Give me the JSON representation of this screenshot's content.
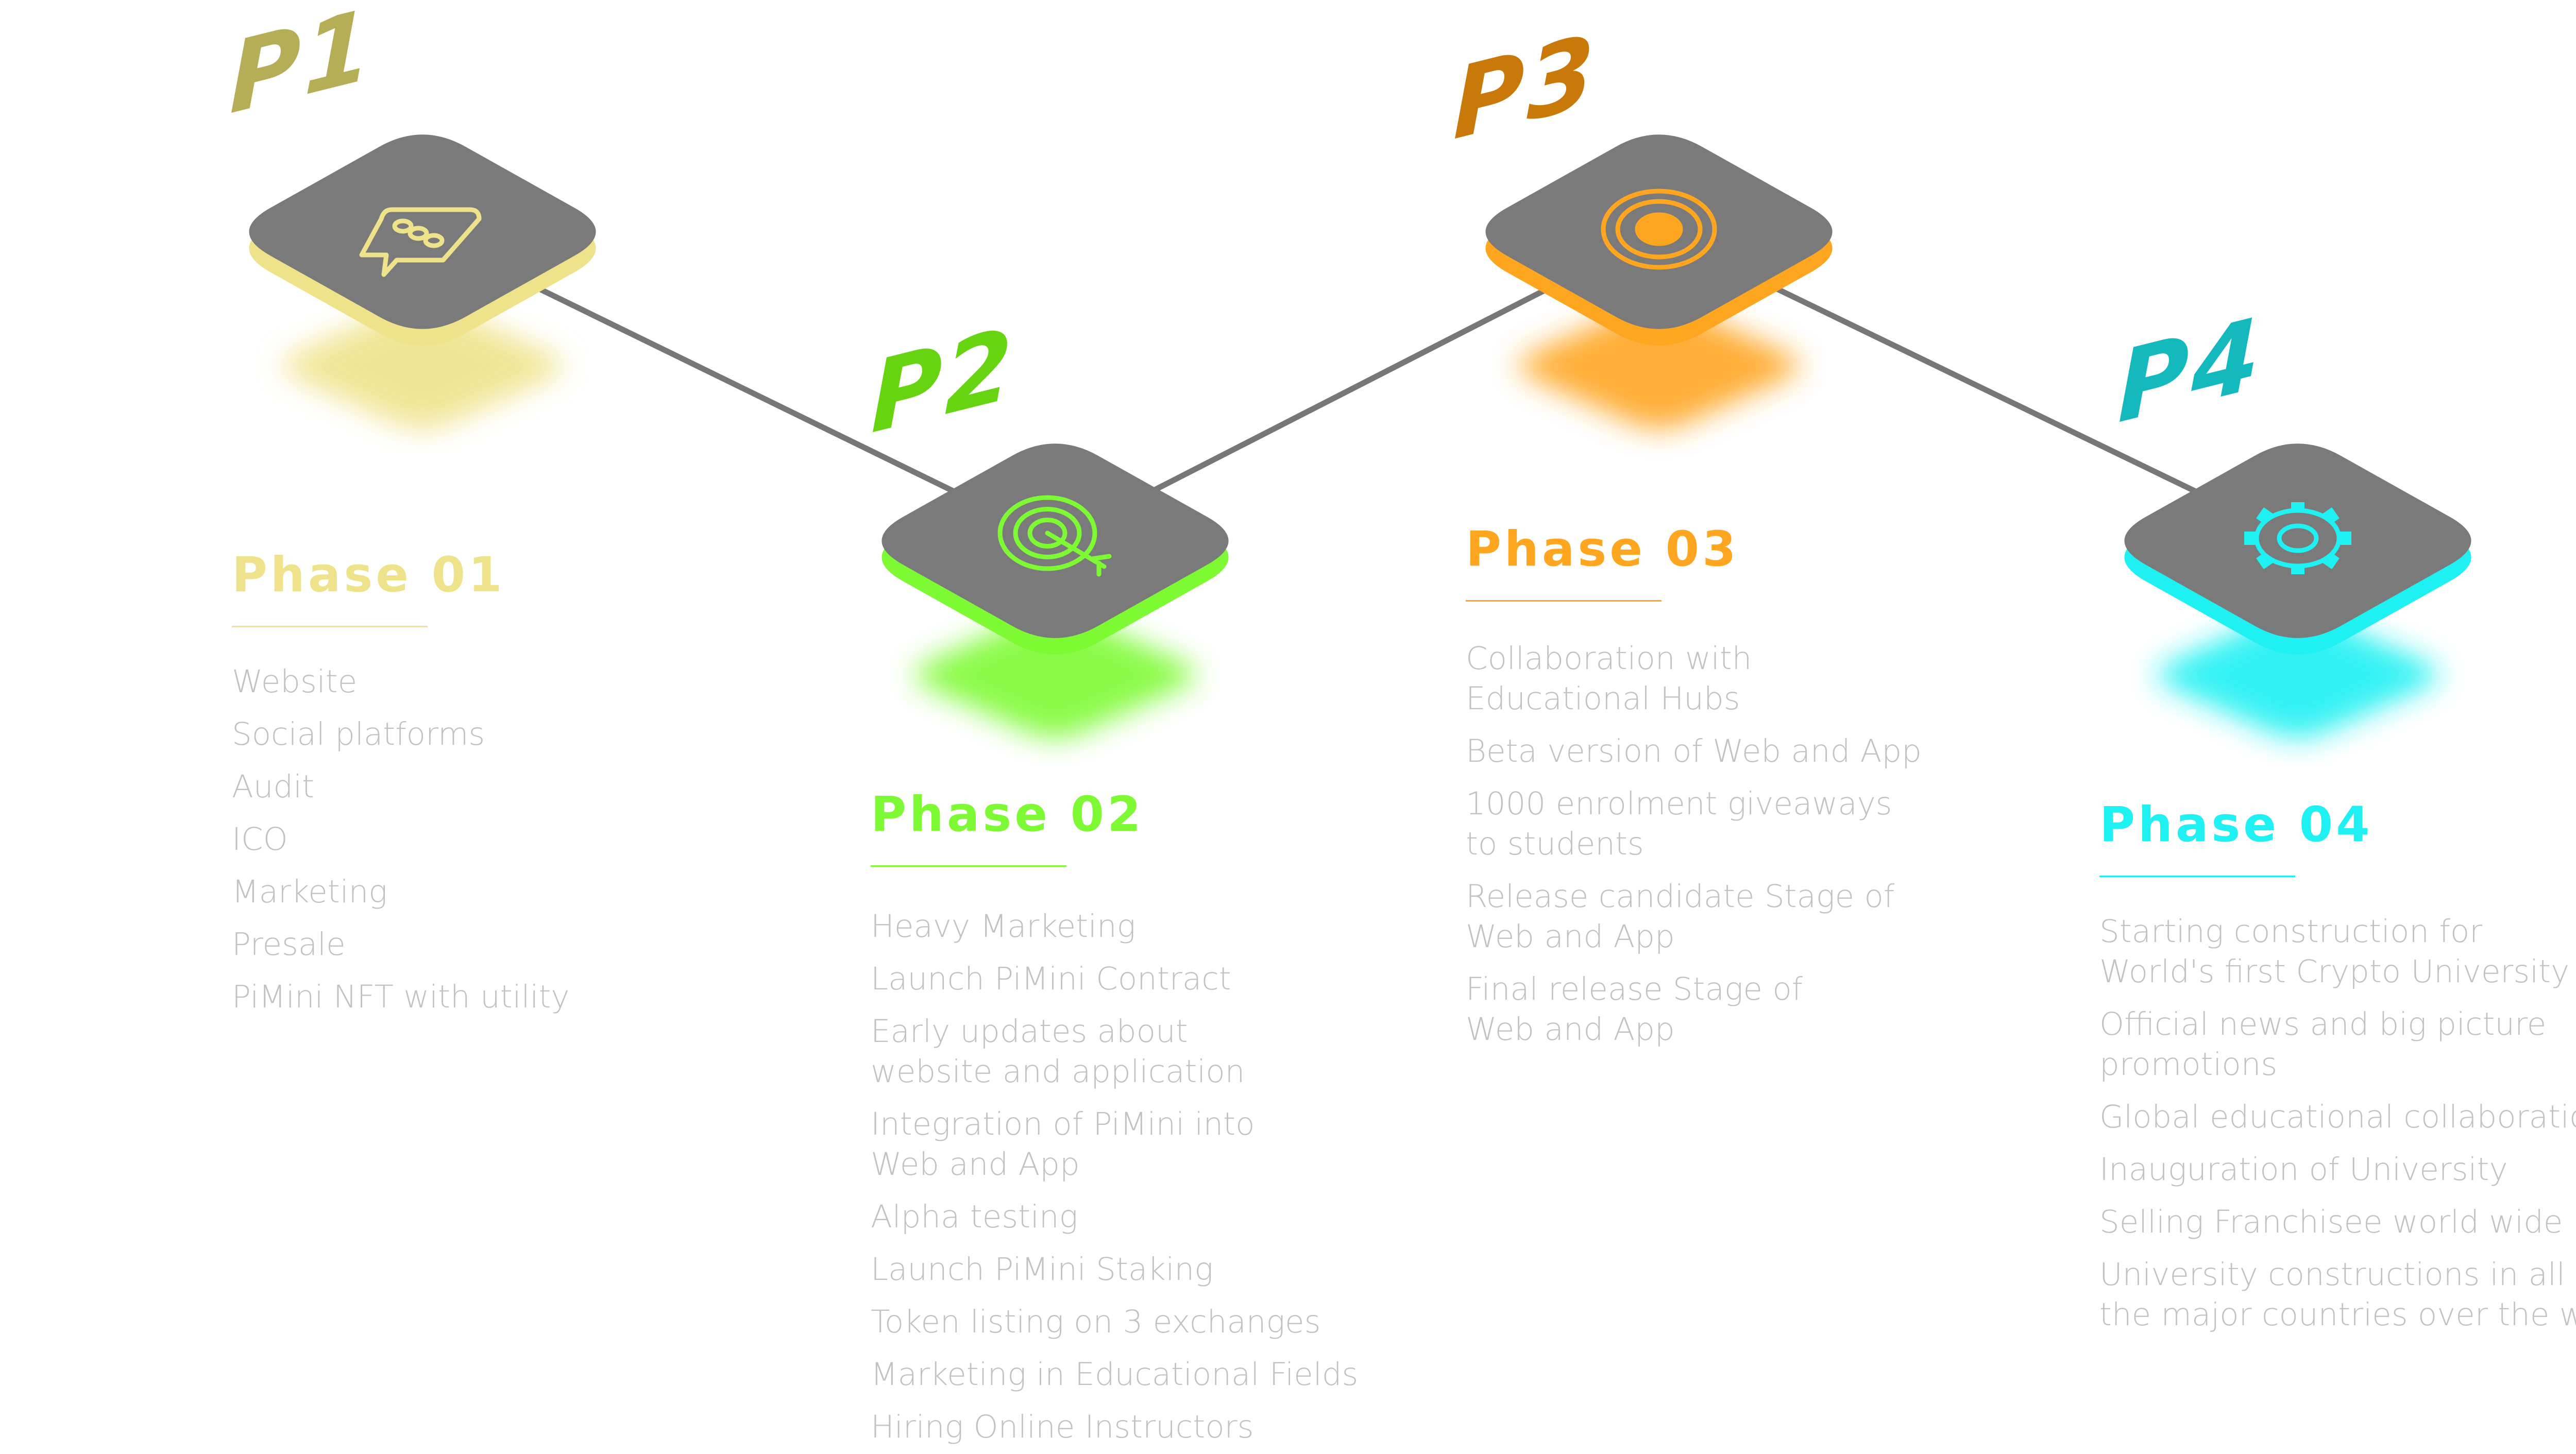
{
  "colors": {
    "tile": "#7a7a7a",
    "connector": "#777777",
    "item_text": "#c2c2c2"
  },
  "phases": [
    {
      "marker": "P1",
      "title": "Phase 01",
      "accent": "#eee38a",
      "marker_color": "#b6ad57",
      "icon": "chat-bubble-icon",
      "items": [
        "Website",
        "Social platforms",
        "Audit",
        "ICO",
        "Marketing",
        "Presale",
        "PiMini NFT with utility"
      ]
    },
    {
      "marker": "P2",
      "title": "Phase 02",
      "accent": "#7dfa33",
      "marker_color": "#66d411",
      "icon": "target-icon",
      "items": [
        "Heavy Marketing",
        "Launch PiMini Contract",
        "Early updates about\nwebsite and application",
        "Integration of PiMini into\nWeb and App",
        "Alpha testing",
        "Launch PiMini Staking",
        "Token listing on 3 exchanges",
        "Marketing in Educational Fields",
        "Hiring Online Instructors"
      ]
    },
    {
      "marker": "P3",
      "title": "Phase 03",
      "accent": "#ffa621",
      "marker_color": "#c9790a",
      "icon": "coin-icon",
      "items": [
        "Collaboration with\nEducational Hubs",
        "Beta version of Web and App",
        "1000 enrolment giveaways\nto students",
        "Release candidate Stage of\nWeb and App",
        "Final release Stage of\nWeb and App"
      ]
    },
    {
      "marker": "P4",
      "title": "Phase 04",
      "accent": "#1ff0f2",
      "marker_color": "#13b9bd",
      "icon": "gear-icon",
      "items": [
        "Starting construction for\nWorld's first Crypto University",
        "Official news and big picture\npromotions",
        "Global educational collaboration",
        "Inauguration of University",
        "Selling Franchisee world wide",
        "University constructions in all\nthe major countries over the world"
      ]
    }
  ]
}
